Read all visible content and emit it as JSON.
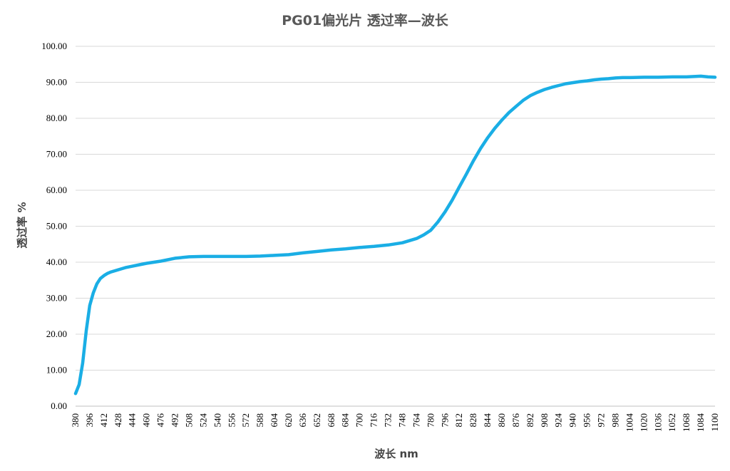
{
  "chart_data": {
    "type": "line",
    "title": "PG01偏光片  透过率—波长",
    "xlabel": "波长 nm",
    "ylabel": "透过率 %",
    "xlim": [
      380,
      1100
    ],
    "ylim": [
      0,
      100
    ],
    "y_ticks": [
      "0.00",
      "10.00",
      "20.00",
      "30.00",
      "40.00",
      "50.00",
      "60.00",
      "70.00",
      "80.00",
      "90.00",
      "100.00"
    ],
    "x_ticks": [
      "380",
      "396",
      "412",
      "428",
      "444",
      "460",
      "476",
      "492",
      "508",
      "524",
      "540",
      "556",
      "572",
      "588",
      "604",
      "620",
      "636",
      "652",
      "668",
      "684",
      "700",
      "716",
      "732",
      "748",
      "764",
      "780",
      "796",
      "812",
      "828",
      "844",
      "860",
      "876",
      "892",
      "908",
      "924",
      "940",
      "956",
      "972",
      "988",
      "1004",
      "1020",
      "1036",
      "1052",
      "1068",
      "1084",
      "1100"
    ],
    "grid": "horizontal",
    "line_color": "#1aaee5",
    "series": [
      {
        "x": [
          380,
          384,
          388,
          392,
          396,
          400,
          404,
          408,
          412,
          416,
          420,
          428,
          436,
          444,
          452,
          460,
          476,
          492,
          508,
          524,
          540,
          556,
          572,
          588,
          604,
          620,
          636,
          652,
          668,
          684,
          700,
          716,
          732,
          748,
          764,
          772,
          780,
          788,
          796,
          804,
          812,
          820,
          828,
          836,
          844,
          852,
          860,
          868,
          876,
          884,
          892,
          900,
          908,
          916,
          924,
          932,
          940,
          948,
          956,
          964,
          972,
          980,
          988,
          996,
          1004,
          1020,
          1036,
          1052,
          1068,
          1084,
          1092,
          1100
        ],
        "y": [
          3.5,
          6.0,
          12.0,
          21.0,
          28.0,
          31.5,
          34.0,
          35.5,
          36.3,
          36.9,
          37.3,
          37.9,
          38.5,
          38.9,
          39.3,
          39.7,
          40.3,
          41.1,
          41.5,
          41.6,
          41.6,
          41.6,
          41.6,
          41.7,
          41.9,
          42.1,
          42.6,
          43.0,
          43.4,
          43.7,
          44.1,
          44.4,
          44.8,
          45.4,
          46.6,
          47.6,
          48.9,
          51.2,
          54.0,
          57.2,
          60.9,
          64.5,
          68.2,
          71.6,
          74.6,
          77.2,
          79.5,
          81.6,
          83.3,
          85.0,
          86.3,
          87.2,
          88.0,
          88.6,
          89.1,
          89.6,
          89.9,
          90.2,
          90.4,
          90.7,
          90.9,
          91.0,
          91.2,
          91.3,
          91.3,
          91.4,
          91.4,
          91.5,
          91.5,
          91.7,
          91.5,
          91.4
        ]
      }
    ]
  }
}
